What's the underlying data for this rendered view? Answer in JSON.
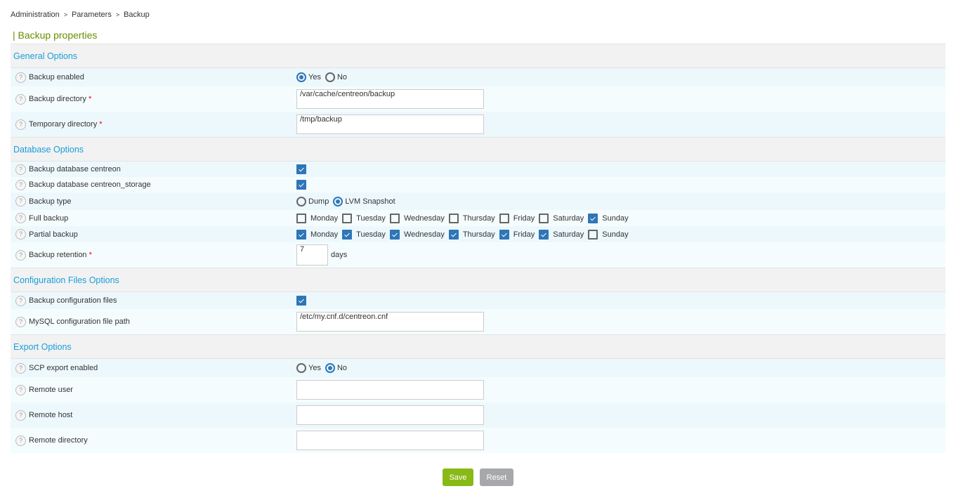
{
  "breadcrumb": [
    "Administration",
    "Parameters",
    "Backup"
  ],
  "breadcrumb_sep": ">",
  "title": "| Backup properties",
  "sections": [
    {
      "title": "General Options",
      "rows": [
        {
          "label": "Backup enabled",
          "type": "radio",
          "options": [
            "Yes",
            "No"
          ],
          "selected": "Yes",
          "h": 26
        },
        {
          "label": "Backup directory",
          "required": true,
          "type": "text",
          "value": "/var/cache/centreon/backup",
          "h": 36
        },
        {
          "label": "Temporary directory",
          "required": true,
          "type": "text",
          "value": "/tmp/backup",
          "h": 36
        }
      ]
    },
    {
      "title": "Database Options",
      "rows": [
        {
          "label": "Backup database centreon",
          "type": "checkbox",
          "checked": true,
          "h": 22
        },
        {
          "label": "Backup database centreon_storage",
          "type": "checkbox",
          "checked": true,
          "h": 22
        },
        {
          "label": "Backup type",
          "type": "radio",
          "options": [
            "Dump",
            "LVM Snapshot"
          ],
          "selected": "LVM Snapshot",
          "h": 25
        },
        {
          "label": "Full backup",
          "type": "days",
          "days": [
            "Monday",
            "Tuesday",
            "Wednesday",
            "Thursday",
            "Friday",
            "Saturday",
            "Sunday"
          ],
          "checked": [
            false,
            false,
            false,
            false,
            false,
            false,
            true
          ],
          "h": 23
        },
        {
          "label": "Partial backup",
          "type": "days",
          "days": [
            "Monday",
            "Tuesday",
            "Wednesday",
            "Thursday",
            "Friday",
            "Saturday",
            "Sunday"
          ],
          "checked": [
            true,
            true,
            true,
            true,
            true,
            true,
            false
          ],
          "h": 23
        },
        {
          "label": "Backup retention",
          "required": true,
          "type": "number",
          "value": "7",
          "unit": "days",
          "h": 36
        }
      ]
    },
    {
      "title": "Configuration Files Options",
      "rows": [
        {
          "label": "Backup configuration files",
          "type": "checkbox",
          "checked": true,
          "h": 24
        },
        {
          "label": "MySQL configuration file path",
          "type": "text",
          "value": "/etc/my.cnf.d/centreon.cnf",
          "h": 36
        }
      ]
    },
    {
      "title": "Export Options",
      "rows": [
        {
          "label": "SCP export enabled",
          "type": "radio",
          "options": [
            "Yes",
            "No"
          ],
          "selected": "No",
          "h": 26
        },
        {
          "label": "Remote user",
          "type": "text",
          "value": "",
          "h": 36
        },
        {
          "label": "Remote host",
          "type": "text",
          "value": "",
          "h": 36
        },
        {
          "label": "Remote directory",
          "type": "text",
          "value": "",
          "h": 36
        }
      ]
    }
  ],
  "buttons": {
    "save": "Save",
    "reset": "Reset"
  },
  "colors": {
    "accent": "#199ed8",
    "title": "#6b8c00",
    "save": "#88b917",
    "reset": "#a7a8ab",
    "checked": "#2e76b7"
  }
}
